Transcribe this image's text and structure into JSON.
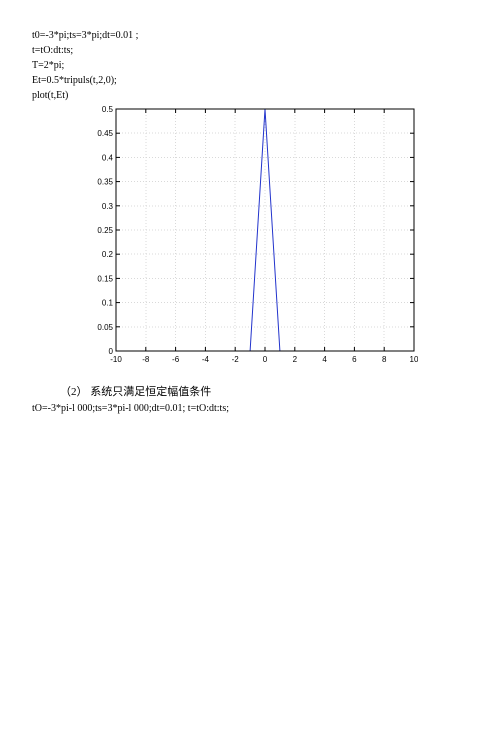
{
  "code": {
    "l1": "t0=-3*pi;ts=3*pi;dt=0.01 ;",
    "l2": "t=tO:dt:ts;",
    "l3": "T=2*pi;",
    "l4": "Et=0.5*tripuls(t,2,0);",
    "l5": "plot(t,Et)"
  },
  "chart": {
    "bg": "#ffffff",
    "plot_bg": "#ffffff",
    "axis_color": "#000000",
    "grid_color": "#d9d9d9",
    "line_color": "#2233cc",
    "tick_font_size": 8,
    "x_ticks": [
      -10,
      -8,
      -6,
      -4,
      -2,
      0,
      2,
      4,
      6,
      8,
      10
    ],
    "y_ticks": [
      0,
      0.05,
      0.1,
      0.15,
      0.2,
      0.25,
      0.3,
      0.35,
      0.4,
      0.45,
      0.5
    ],
    "xlim": [
      -10,
      10
    ],
    "ylim": [
      0,
      0.5
    ],
    "series_x": [
      -3.14159,
      -1,
      0,
      1,
      3.14159
    ],
    "series_note": "y = 0.5*tripuls(t,2,0) — triangle of width 2 centered at 0, amplitude 0.5; zero elsewhere on [-3pi,3pi]"
  },
  "section2": {
    "label": "（2）    系统只满足恒定幅值条件",
    "code": "tO=-3*pi-l 000;ts=3*pi-l 000;dt=0.01; t=tO:dt:ts;"
  }
}
